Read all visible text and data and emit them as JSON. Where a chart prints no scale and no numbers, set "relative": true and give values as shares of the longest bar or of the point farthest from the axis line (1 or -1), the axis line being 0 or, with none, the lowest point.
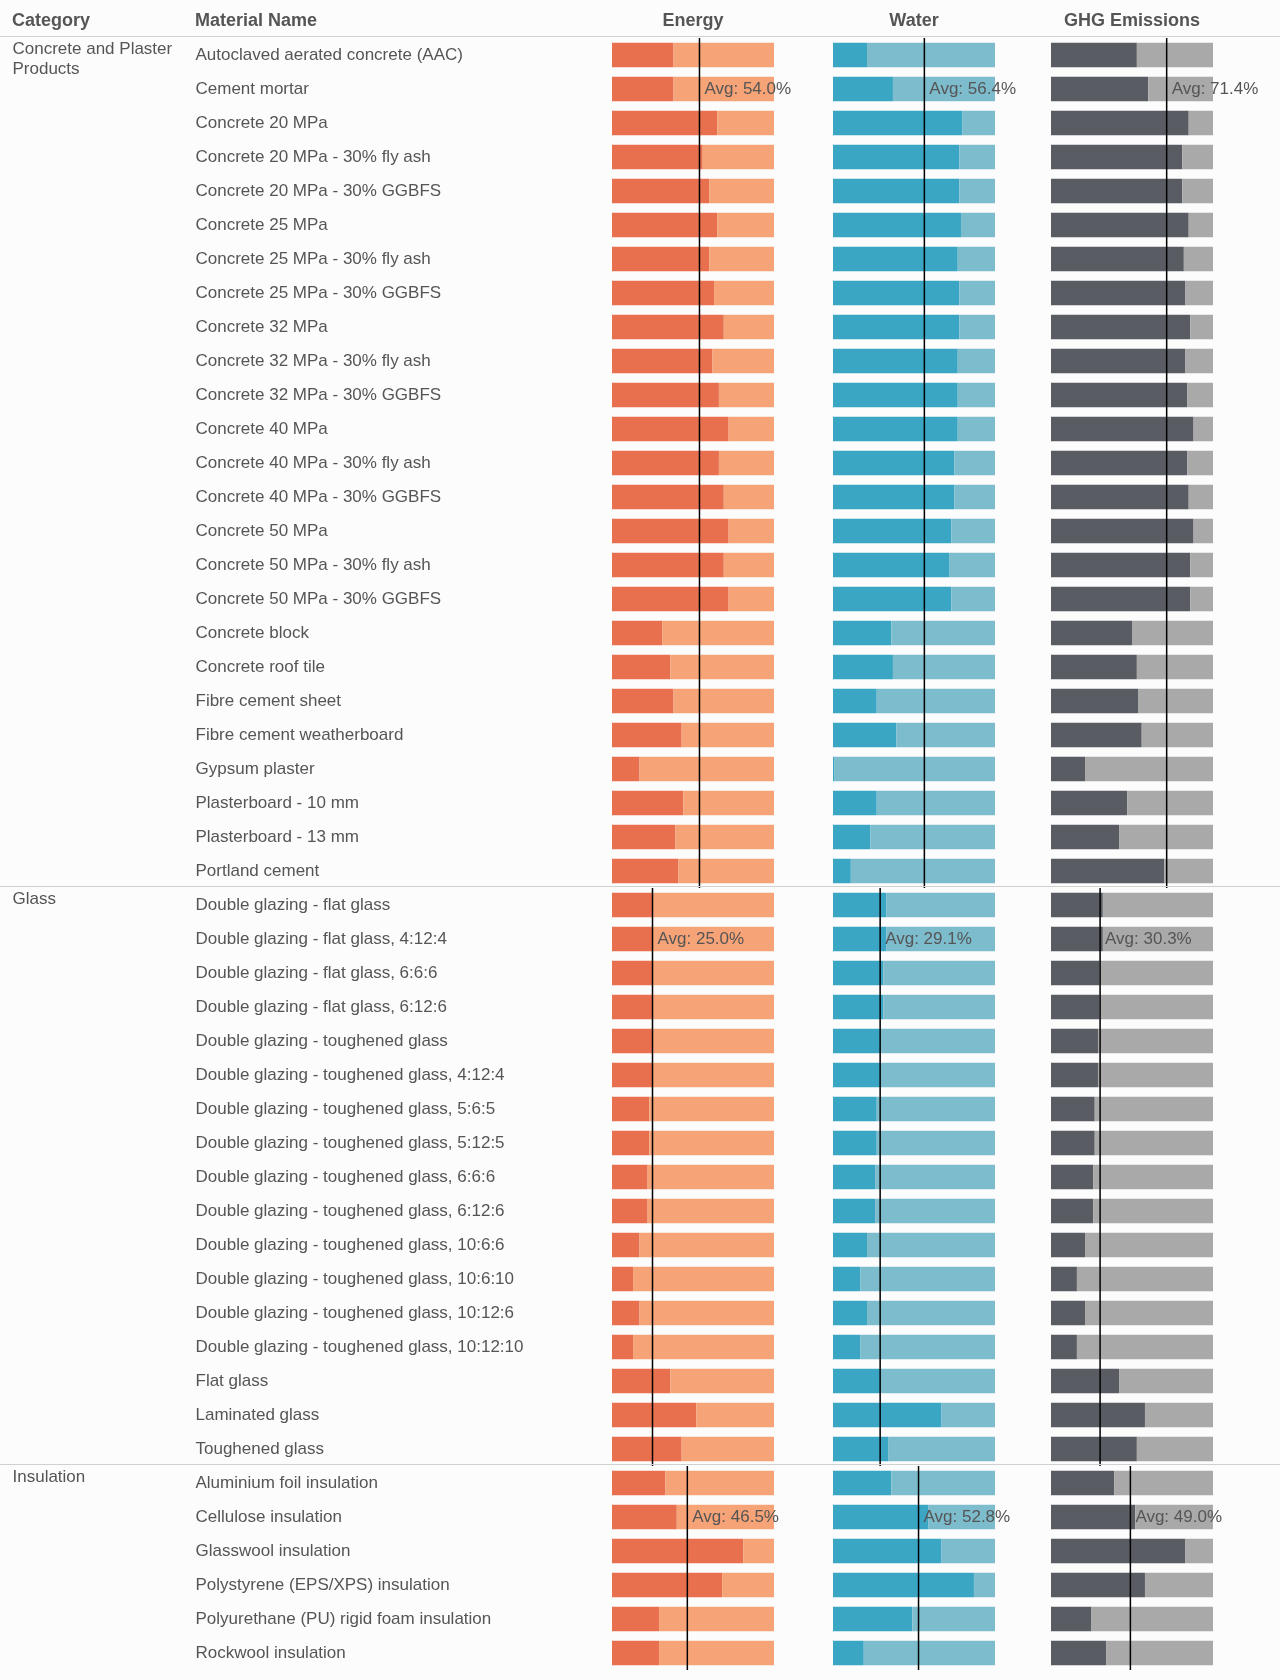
{
  "chart_data": [
    {
      "type": "bar",
      "title": "Energy",
      "annotations": [
        "Category",
        "Material Name"
      ],
      "ylabel": "Concrete and Plaster Products",
      "orientation": "horizontal",
      "stacked": true,
      "relative": true,
      "tick_labels": "y",
      "categories": [
        "Autoclaved aerated concrete (AAC)",
        "Cement mortar",
        "Concrete 20 MPa",
        "Concrete 20 MPa - 30% fly ash",
        "Concrete 20 MPa - 30% GGBFS",
        "Concrete 25 MPa",
        "Concrete 25 MPa - 30% fly ash",
        "Concrete 25 MPa - 30% GGBFS",
        "Concrete 32 MPa",
        "Concrete 32 MPa - 30% fly ash",
        "Concrete 32 MPa - 30% GGBFS",
        "Concrete 40 MPa",
        "Concrete 40 MPa - 30% fly ash",
        "Concrete 40 MPa - 30% GGBFS",
        "Concrete 50 MPa",
        "Concrete 50 MPa - 30% fly ash",
        "Concrete 50 MPa - 30% GGBFS",
        "Concrete block",
        "Concrete roof tile",
        "Fibre cement sheet",
        "Fibre cement weatherboard",
        "Gypsum plaster",
        "Plasterboard - 10 mm",
        "Plasterboard - 13 mm",
        "Portland cement"
      ],
      "series": [
        {
          "color": "#e8704f",
          "values": [
            0.38,
            0.38,
            0.65,
            0.56,
            0.6,
            0.65,
            0.6,
            0.63,
            0.69,
            0.62,
            0.66,
            0.72,
            0.66,
            0.69,
            0.72,
            0.69,
            0.72,
            0.31,
            0.36,
            0.38,
            0.43,
            0.17,
            0.44,
            0.39,
            0.41
          ]
        },
        {
          "color": "#f5a377",
          "values": [
            0.62,
            0.62,
            0.35,
            0.44,
            0.4,
            0.35,
            0.4,
            0.37,
            0.31,
            0.38,
            0.34,
            0.28,
            0.34,
            0.31,
            0.28,
            0.31,
            0.28,
            0.69,
            0.64,
            0.62,
            0.57,
            0.83,
            0.56,
            0.61,
            0.59
          ]
        }
      ],
      "ref_lines": [
        {
          "axis": "x",
          "value": 0.54,
          "label": "Avg: 54.0%",
          "color": "#000000"
        }
      ]
    },
    {
      "type": "bar",
      "title": "Water",
      "orientation": "horizontal",
      "stacked": true,
      "relative": true,
      "tick_labels": false,
      "categories": [
        null,
        null,
        null,
        null,
        null,
        null,
        null,
        null,
        null,
        null,
        null,
        null,
        null,
        null,
        null,
        null,
        null,
        null,
        null,
        null,
        null,
        null,
        null,
        null,
        null
      ],
      "series": [
        {
          "color": "#3aa6c4",
          "values": [
            0.21,
            0.37,
            0.8,
            0.78,
            0.78,
            0.79,
            0.77,
            0.78,
            0.78,
            0.77,
            0.77,
            0.77,
            0.75,
            0.75,
            0.73,
            0.72,
            0.73,
            0.36,
            0.37,
            0.27,
            0.39,
            0.01,
            0.27,
            0.23,
            0.11
          ]
        },
        {
          "color": "#7dbccd",
          "values": [
            0.79,
            0.63,
            0.2,
            0.22,
            0.22,
            0.21,
            0.23,
            0.22,
            0.22,
            0.23,
            0.23,
            0.23,
            0.25,
            0.25,
            0.27,
            0.28,
            0.27,
            0.64,
            0.63,
            0.73,
            0.61,
            0.99,
            0.73,
            0.77,
            0.89
          ]
        }
      ],
      "ref_lines": [
        {
          "axis": "x",
          "value": 0.564,
          "label": "Avg: 56.4%",
          "color": "#000000"
        }
      ]
    },
    {
      "type": "bar",
      "title": "GHG Emissions",
      "orientation": "horizontal",
      "stacked": true,
      "relative": true,
      "tick_labels": false,
      "categories": [
        null,
        null,
        null,
        null,
        null,
        null,
        null,
        null,
        null,
        null,
        null,
        null,
        null,
        null,
        null,
        null,
        null,
        null,
        null,
        null,
        null,
        null,
        null,
        null,
        null
      ],
      "series": [
        {
          "color": "#595c63",
          "values": [
            0.53,
            0.6,
            0.85,
            0.81,
            0.81,
            0.85,
            0.82,
            0.83,
            0.86,
            0.83,
            0.84,
            0.88,
            0.84,
            0.85,
            0.88,
            0.86,
            0.86,
            0.5,
            0.53,
            0.54,
            0.56,
            0.21,
            0.47,
            0.42,
            0.7
          ]
        },
        {
          "color": "#a9a9a9",
          "values": [
            0.47,
            0.4,
            0.15,
            0.19,
            0.19,
            0.15,
            0.18,
            0.17,
            0.14,
            0.17,
            0.16,
            0.12,
            0.16,
            0.15,
            0.12,
            0.14,
            0.14,
            0.5,
            0.47,
            0.46,
            0.44,
            0.79,
            0.53,
            0.58,
            0.3
          ]
        }
      ],
      "ref_lines": [
        {
          "axis": "x",
          "value": 0.714,
          "label": "Avg: 71.4%",
          "color": "#000000"
        }
      ]
    },
    {
      "type": "bar",
      "ylabel": "Glass",
      "orientation": "horizontal",
      "stacked": true,
      "relative": true,
      "tick_labels": "y",
      "categories": [
        "Double glazing - flat glass",
        "Double glazing - flat glass, 4:12:4",
        "Double glazing - flat glass, 6:6:6",
        "Double glazing - flat glass, 6:12:6",
        "Double glazing - toughened glass",
        "Double glazing - toughened glass, 4:12:4",
        "Double glazing - toughened glass, 5:6:5",
        "Double glazing - toughened glass, 5:12:5",
        "Double glazing - toughened glass, 6:6:6",
        "Double glazing - toughened glass, 6:12:6",
        "Double glazing - toughened glass, 10:6:6",
        "Double glazing - toughened glass, 10:6:10",
        "Double glazing - toughened glass, 10:12:6",
        "Double glazing - toughened glass, 10:12:10",
        "Flat glass",
        "Laminated glass",
        "Toughened glass"
      ],
      "series": [
        {
          "color": "#e8704f",
          "values": [
            0.25,
            0.25,
            0.25,
            0.25,
            0.25,
            0.25,
            0.23,
            0.23,
            0.22,
            0.22,
            0.17,
            0.13,
            0.17,
            0.13,
            0.36,
            0.52,
            0.43
          ]
        },
        {
          "color": "#f5a377",
          "values": [
            0.75,
            0.75,
            0.75,
            0.75,
            0.75,
            0.75,
            0.77,
            0.77,
            0.78,
            0.78,
            0.83,
            0.87,
            0.83,
            0.87,
            0.64,
            0.48,
            0.57
          ]
        }
      ],
      "ref_lines": [
        {
          "axis": "x",
          "value": 0.25,
          "label": "Avg: 25.0%",
          "color": "#000000"
        }
      ]
    },
    {
      "type": "bar",
      "orientation": "horizontal",
      "stacked": true,
      "relative": true,
      "tick_labels": false,
      "categories": [
        null,
        null,
        null,
        null,
        null,
        null,
        null,
        null,
        null,
        null,
        null,
        null,
        null,
        null,
        null,
        null,
        null
      ],
      "series": [
        {
          "color": "#3aa6c4",
          "values": [
            0.33,
            0.33,
            0.31,
            0.31,
            0.29,
            0.29,
            0.27,
            0.27,
            0.26,
            0.26,
            0.21,
            0.17,
            0.21,
            0.17,
            0.29,
            0.67,
            0.34
          ]
        },
        {
          "color": "#7dbccd",
          "values": [
            0.67,
            0.67,
            0.69,
            0.69,
            0.71,
            0.71,
            0.73,
            0.73,
            0.74,
            0.74,
            0.79,
            0.83,
            0.79,
            0.83,
            0.71,
            0.33,
            0.66
          ]
        }
      ],
      "ref_lines": [
        {
          "axis": "x",
          "value": 0.291,
          "label": "Avg: 29.1%",
          "color": "#000000"
        }
      ]
    },
    {
      "type": "bar",
      "orientation": "horizontal",
      "stacked": true,
      "relative": true,
      "tick_labels": false,
      "categories": [
        null,
        null,
        null,
        null,
        null,
        null,
        null,
        null,
        null,
        null,
        null,
        null,
        null,
        null,
        null,
        null,
        null
      ],
      "series": [
        {
          "color": "#595c63",
          "values": [
            0.32,
            0.32,
            0.3,
            0.3,
            0.29,
            0.29,
            0.27,
            0.27,
            0.26,
            0.26,
            0.21,
            0.16,
            0.21,
            0.16,
            0.42,
            0.58,
            0.53
          ]
        },
        {
          "color": "#a9a9a9",
          "values": [
            0.68,
            0.68,
            0.7,
            0.7,
            0.71,
            0.71,
            0.73,
            0.73,
            0.74,
            0.74,
            0.79,
            0.84,
            0.79,
            0.84,
            0.58,
            0.42,
            0.47
          ]
        }
      ],
      "ref_lines": [
        {
          "axis": "x",
          "value": 0.303,
          "label": "Avg: 30.3%",
          "color": "#000000"
        }
      ]
    },
    {
      "type": "bar",
      "ylabel": "Insulation",
      "orientation": "horizontal",
      "stacked": true,
      "relative": true,
      "tick_labels": "y",
      "categories": [
        "Aluminium foil insulation",
        "Cellulose insulation",
        "Glasswool insulation",
        "Polystyrene (EPS/XPS) insulation",
        "Polyurethane (PU) rigid foam insulation",
        "Rockwool insulation"
      ],
      "series": [
        {
          "color": "#e8704f",
          "values": [
            0.33,
            0.4,
            0.81,
            0.68,
            0.29,
            0.29
          ]
        },
        {
          "color": "#f5a377",
          "values": [
            0.67,
            0.6,
            0.19,
            0.32,
            0.71,
            0.71
          ]
        }
      ],
      "ref_lines": [
        {
          "axis": "x",
          "value": 0.465,
          "label": "Avg: 46.5%",
          "color": "#000000"
        }
      ]
    },
    {
      "type": "bar",
      "orientation": "horizontal",
      "stacked": true,
      "relative": true,
      "tick_labels": false,
      "categories": [
        null,
        null,
        null,
        null,
        null,
        null
      ],
      "series": [
        {
          "color": "#3aa6c4",
          "values": [
            0.36,
            0.59,
            0.67,
            0.87,
            0.49,
            0.19
          ]
        },
        {
          "color": "#7dbccd",
          "values": [
            0.64,
            0.41,
            0.33,
            0.13,
            0.51,
            0.81
          ]
        }
      ],
      "ref_lines": [
        {
          "axis": "x",
          "value": 0.528,
          "label": "Avg: 52.8%",
          "color": "#000000"
        }
      ]
    },
    {
      "type": "bar",
      "orientation": "horizontal",
      "stacked": true,
      "relative": true,
      "tick_labels": false,
      "categories": [
        null,
        null,
        null,
        null,
        null,
        null
      ],
      "series": [
        {
          "color": "#595c63",
          "values": [
            0.39,
            0.52,
            0.83,
            0.58,
            0.25,
            0.34
          ]
        },
        {
          "color": "#a9a9a9",
          "values": [
            0.61,
            0.48,
            0.17,
            0.42,
            0.75,
            0.66
          ]
        }
      ],
      "ref_lines": [
        {
          "axis": "x",
          "value": 0.49,
          "label": "Avg: 49.0%",
          "color": "#000000"
        }
      ]
    }
  ]
}
